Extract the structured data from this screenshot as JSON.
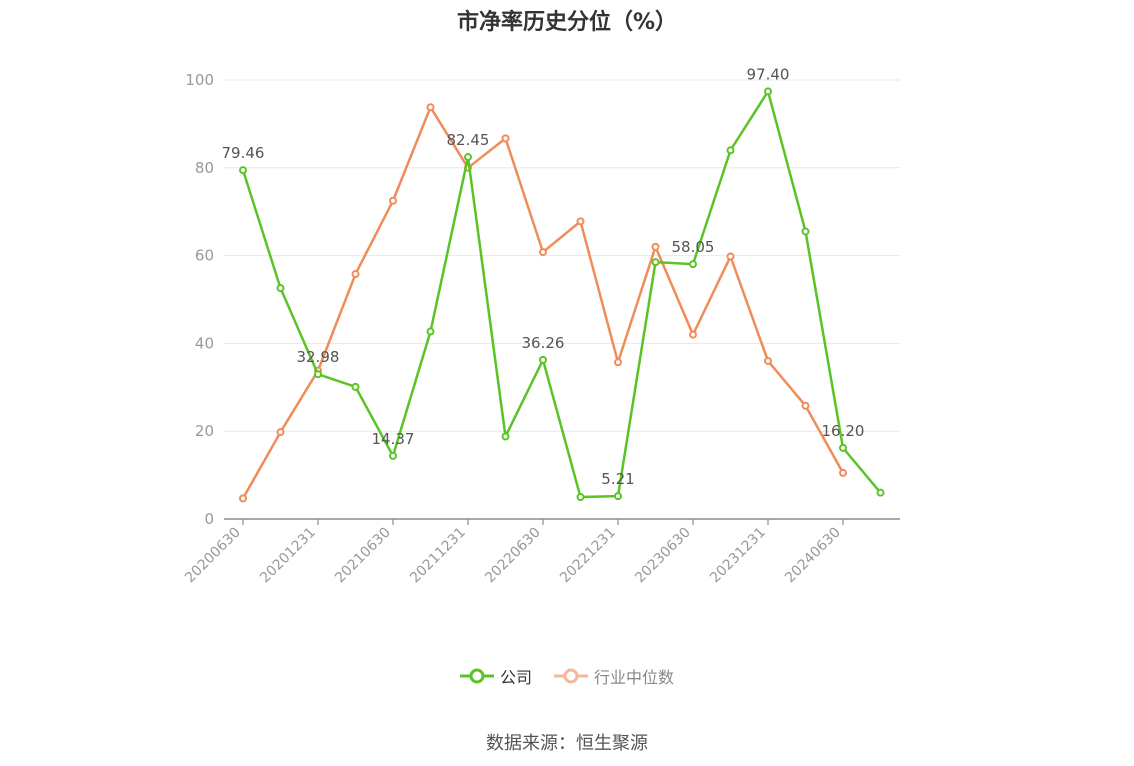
{
  "title": "市净率历史分位（%）",
  "source": "数据来源：恒生聚源",
  "legend": {
    "company": "公司",
    "industry": "行业中位数"
  },
  "colors": {
    "company": "#5ac427",
    "industry": "#f08c5a",
    "industry_legend": "#f5b89a",
    "grid": "#e6e8ef",
    "axis": "#8c8c8c",
    "label": "#555555"
  },
  "chart_data": {
    "type": "line",
    "x": [
      "20200630",
      "20200930",
      "20201231",
      "20210331",
      "20210630",
      "20210930",
      "20211231",
      "20220331",
      "20220630",
      "20220930",
      "20221231",
      "20230331",
      "20230630",
      "20230930",
      "20231231",
      "20240331",
      "20240630",
      "20240930"
    ],
    "x_tick_labels": [
      "20200630",
      "20201231",
      "20210630",
      "20211231",
      "20220630",
      "20221231",
      "20230630",
      "20231231",
      "20240630"
    ],
    "y_ticks": [
      0,
      20,
      40,
      60,
      80,
      100
    ],
    "ylim": [
      0,
      100
    ],
    "grid": true,
    "legend_position": "bottom",
    "series": [
      {
        "name": "公司",
        "color": "#5ac427",
        "values": [
          79.46,
          52.6,
          32.98,
          30.1,
          14.37,
          42.7,
          82.45,
          18.8,
          36.26,
          5.0,
          5.21,
          58.5,
          58.05,
          84.0,
          97.4,
          65.5,
          16.2,
          6.0
        ],
        "labels": [
          "79.46",
          "",
          "32.98",
          "",
          "14.37",
          "",
          "82.45",
          "",
          "36.26",
          "",
          "5.21",
          "",
          "58.05",
          "",
          "97.40",
          "",
          "16.20",
          ""
        ]
      },
      {
        "name": "行业中位数",
        "color": "#f08c5a",
        "values": [
          4.7,
          19.8,
          33.8,
          55.8,
          72.5,
          93.8,
          80.0,
          86.7,
          60.8,
          67.8,
          35.7,
          62.0,
          42.0,
          59.8,
          36.0,
          25.8,
          10.5,
          null
        ]
      }
    ]
  }
}
